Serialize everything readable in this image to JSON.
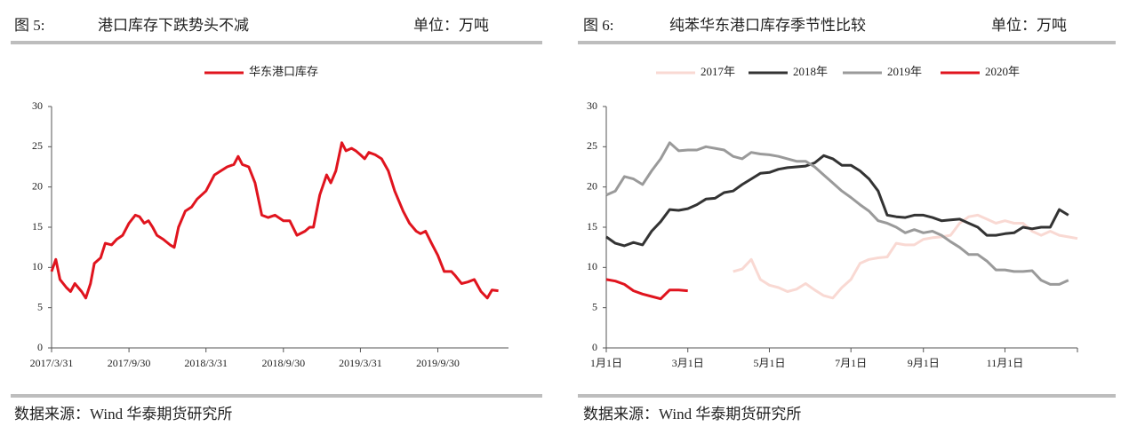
{
  "chart_data": [
    {
      "type": "line",
      "figure_label": "图 5:",
      "title": "港口库存下跌势头不减",
      "unit": "单位：万吨",
      "source": "数据来源：Wind 华泰期货研究所",
      "x": [
        "2017/3/31",
        "2017/4/10",
        "2017/4/20",
        "2017/5/5",
        "2017/5/15",
        "2017/5/25",
        "2017/6/10",
        "2017/6/20",
        "2017/7/1",
        "2017/7/10",
        "2017/7/25",
        "2017/8/5",
        "2017/8/20",
        "2017/9/1",
        "2017/9/15",
        "2017/9/30",
        "2017/10/15",
        "2017/10/25",
        "2017/11/5",
        "2017/11/15",
        "2017/11/25",
        "2017/12/5",
        "2017/12/20",
        "2018/1/5",
        "2018/1/15",
        "2018/1/25",
        "2018/2/10",
        "2018/2/25",
        "2018/3/10",
        "2018/3/31",
        "2018/4/20",
        "2018/5/5",
        "2018/5/20",
        "2018/6/5",
        "2018/6/15",
        "2018/6/25",
        "2018/7/10",
        "2018/7/25",
        "2018/8/10",
        "2018/8/25",
        "2018/9/10",
        "2018/9/30",
        "2018/10/15",
        "2018/11/1",
        "2018/11/20",
        "2018/12/1",
        "2018/12/10",
        "2018/12/25",
        "2019/1/10",
        "2019/1/20",
        "2019/2/1",
        "2019/2/15",
        "2019/2/25",
        "2019/3/10",
        "2019/3/20",
        "2019/3/31",
        "2019/4/10",
        "2019/4/20",
        "2019/5/5",
        "2019/5/20",
        "2019/6/5",
        "2019/6/20",
        "2019/7/10",
        "2019/7/25",
        "2019/8/10",
        "2019/8/20",
        "2019/9/1",
        "2019/9/15",
        "2019/9/30",
        "2019/10/15",
        "2019/11/1",
        "2019/11/10",
        "2019/11/25",
        "2019/12/10",
        "2019/12/25",
        "2020/1/10",
        "2020/1/25",
        "2020/2/5",
        "2020/2/20"
      ],
      "series": [
        {
          "name": "华东港口库存",
          "color": "#e0141e",
          "values": [
            9.5,
            11,
            8.5,
            7.5,
            7,
            8,
            7,
            6.2,
            8,
            10.5,
            11.2,
            13,
            12.8,
            13.5,
            14,
            15.5,
            16.5,
            16.3,
            15.5,
            15.8,
            15,
            14,
            13.5,
            12.8,
            12.5,
            15,
            17,
            17.5,
            18.5,
            19.5,
            21.5,
            22,
            22.5,
            22.8,
            23.8,
            22.8,
            22.5,
            20.5,
            16.5,
            16.2,
            16.5,
            15.8,
            15.8,
            14,
            14.5,
            15,
            15,
            19,
            21.5,
            20.5,
            22,
            25.5,
            24.5,
            24.8,
            24.5,
            24,
            23.5,
            24.3,
            24,
            23.5,
            22,
            19.5,
            17,
            15.5,
            14.5,
            14.2,
            14.5,
            13,
            11.5,
            9.5,
            9.5,
            9,
            8,
            8.2,
            8.5,
            7,
            6.2,
            7.2,
            7.1
          ]
        }
      ],
      "xlim": [
        "2017/3/31",
        "2020/3/15"
      ],
      "xticks": [
        "2017/3/31",
        "2017/9/30",
        "2018/3/31",
        "2018/9/30",
        "2019/3/31",
        "2019/9/30"
      ],
      "ylim": [
        0,
        30
      ],
      "yticks": [
        0,
        5,
        10,
        15,
        20,
        25,
        30
      ],
      "grid": false
    },
    {
      "type": "line",
      "figure_label": "图 6:",
      "title": "纯苯华东港口库存季节性比较",
      "unit": "单位：万吨",
      "source": "数据来源：Wind 华泰期货研究所",
      "categories": [
        "1月1日",
        null,
        null,
        null,
        null,
        null,
        null,
        null,
        null,
        "3月1日",
        null,
        null,
        null,
        null,
        null,
        null,
        null,
        null,
        "5月1日",
        null,
        null,
        null,
        null,
        null,
        null,
        null,
        null,
        "7月1日",
        null,
        null,
        null,
        null,
        null,
        null,
        null,
        "9月1日",
        null,
        null,
        null,
        null,
        null,
        null,
        null,
        null,
        "11月1日",
        null,
        null,
        null,
        null,
        null,
        null,
        null,
        null
      ],
      "series": [
        {
          "name": "2017年",
          "color": "#f9d9d3",
          "values": [
            null,
            null,
            null,
            null,
            null,
            null,
            null,
            null,
            null,
            null,
            null,
            null,
            null,
            null,
            9.5,
            9.8,
            11,
            8.5,
            7.8,
            7.5,
            7,
            7.3,
            8,
            7.2,
            6.5,
            6.2,
            7.5,
            8.5,
            10.5,
            11,
            11.2,
            11.3,
            13,
            12.8,
            12.8,
            13.5,
            13.7,
            13.8,
            14,
            15.5,
            16.3,
            16.5,
            16,
            15.5,
            15.8,
            15.5,
            15.5,
            14.5,
            14,
            14.5,
            14,
            13.8,
            13.6
          ]
        },
        {
          "name": "2018年",
          "color": "#333333",
          "values": [
            13.8,
            13,
            12.7,
            13.1,
            12.8,
            14.5,
            15.7,
            17.2,
            17.1,
            17.3,
            17.8,
            18.5,
            18.6,
            19.3,
            19.5,
            20.3,
            21,
            21.7,
            21.8,
            22.2,
            22.4,
            22.5,
            22.6,
            23,
            23.9,
            23.5,
            22.7,
            22.7,
            22,
            21,
            19.5,
            16.5,
            16.3,
            16.2,
            16.5,
            16.5,
            16.2,
            15.8,
            15.9,
            16,
            15.5,
            15,
            14,
            14,
            14.2,
            14.3,
            15,
            14.8,
            15,
            15,
            17.2,
            16.5,
            null
          ]
        },
        {
          "name": "2019年",
          "color": "#9a9a9a",
          "values": [
            19,
            19.5,
            21.3,
            21,
            20.3,
            22,
            23.5,
            25.5,
            24.5,
            24.6,
            24.6,
            25,
            24.8,
            24.6,
            23.8,
            23.5,
            24.3,
            24.1,
            24,
            23.8,
            23.5,
            23.2,
            23.2,
            22.5,
            21.5,
            20.5,
            19.5,
            18.7,
            17.8,
            17,
            15.8,
            15.5,
            15,
            14.3,
            14.7,
            14.3,
            14.5,
            14,
            13.2,
            12.5,
            11.6,
            11.6,
            10.8,
            9.7,
            9.7,
            9.5,
            9.5,
            9.6,
            8.4,
            7.9,
            7.9,
            8.4,
            null
          ]
        },
        {
          "name": "2020年",
          "color": "#e0141e",
          "values": [
            8.5,
            8.3,
            7.9,
            7.1,
            6.7,
            6.4,
            6.1,
            7.2,
            7.2,
            7.1,
            null,
            null,
            null,
            null,
            null,
            null,
            null,
            null,
            null,
            null,
            null,
            null,
            null,
            null,
            null,
            null,
            null,
            null,
            null,
            null,
            null,
            null,
            null,
            null,
            null,
            null,
            null,
            null,
            null,
            null,
            null,
            null,
            null,
            null,
            null,
            null,
            null,
            null,
            null,
            null,
            null,
            null,
            null
          ]
        }
      ],
      "ylim": [
        0,
        30
      ],
      "yticks": [
        0,
        5,
        10,
        15,
        20,
        25,
        30
      ],
      "grid": false
    }
  ]
}
